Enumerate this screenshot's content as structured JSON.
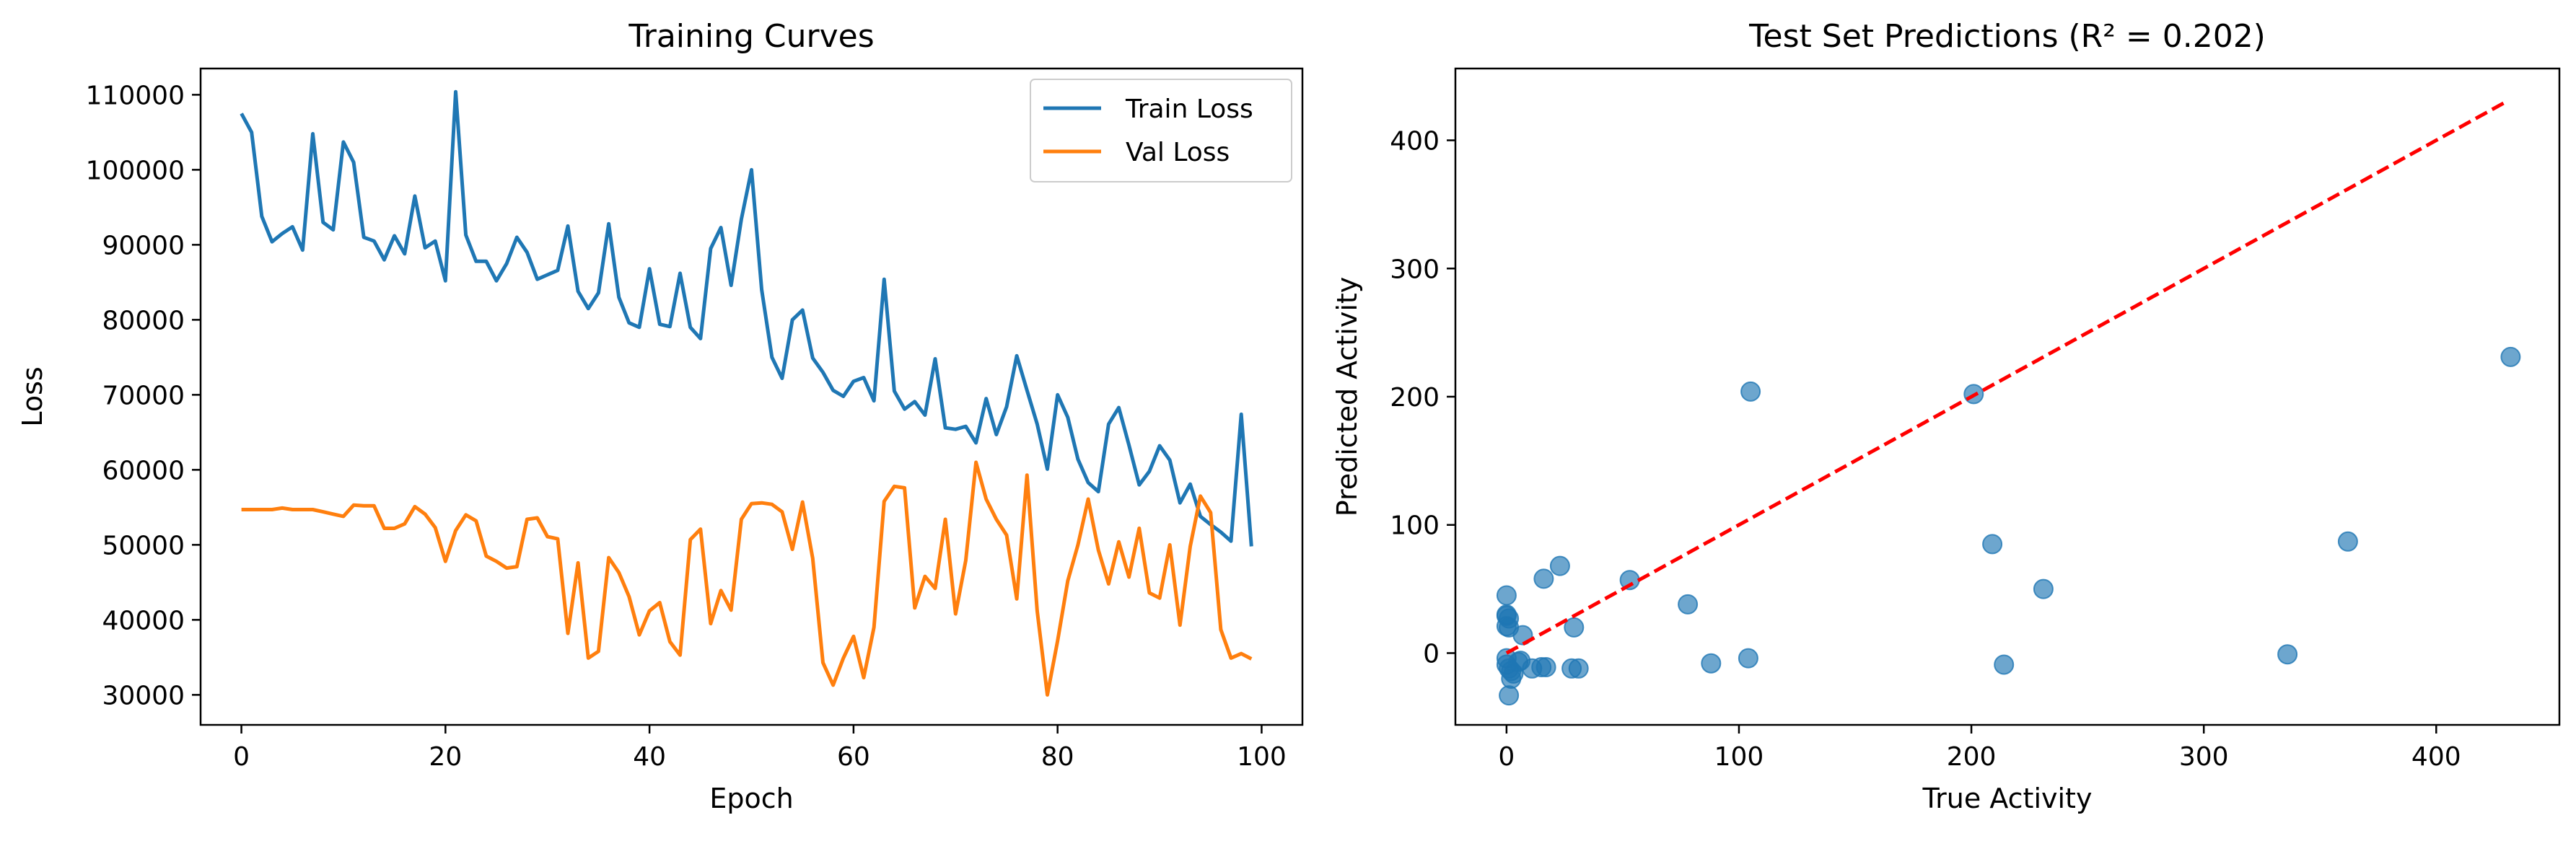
{
  "chart_data": [
    {
      "type": "line",
      "title": "Training Curves",
      "xlabel": "Epoch",
      "ylabel": "Loss",
      "xlim": [
        -4,
        104
      ],
      "ylim": [
        26000,
        113500
      ],
      "xticks": [
        0,
        20,
        40,
        60,
        80,
        100
      ],
      "xtick_labels": [
        "0",
        "20",
        "40",
        "60",
        "80",
        "100"
      ],
      "yticks": [
        30000,
        40000,
        50000,
        60000,
        70000,
        80000,
        90000,
        100000,
        110000
      ],
      "ytick_labels": [
        "30000",
        "40000",
        "50000",
        "60000",
        "70000",
        "80000",
        "90000",
        "100000",
        "110000"
      ],
      "grid": false,
      "legend_position": "top-right",
      "series": [
        {
          "name": "Train Loss",
          "color": "#1f77b4",
          "x": [
            0,
            1,
            2,
            3,
            4,
            5,
            6,
            7,
            8,
            9,
            10,
            11,
            12,
            13,
            14,
            15,
            16,
            17,
            18,
            19,
            20,
            21,
            22,
            23,
            24,
            25,
            26,
            27,
            28,
            29,
            30,
            31,
            32,
            33,
            34,
            35,
            36,
            37,
            38,
            39,
            40,
            41,
            42,
            43,
            44,
            45,
            46,
            47,
            48,
            49,
            50,
            51,
            52,
            53,
            54,
            55,
            56,
            57,
            58,
            59,
            60,
            61,
            62,
            63,
            64,
            65,
            66,
            67,
            68,
            69,
            70,
            71,
            72,
            73,
            74,
            75,
            76,
            77,
            78,
            79,
            80,
            81,
            82,
            83,
            84,
            85,
            86,
            87,
            88,
            89,
            90,
            91,
            92,
            93,
            94,
            95,
            96,
            97,
            98,
            99
          ],
          "values": [
            107500,
            105000,
            93800,
            90400,
            91500,
            92400,
            89300,
            104800,
            93000,
            92000,
            103700,
            101000,
            91000,
            90500,
            88000,
            91200,
            88800,
            96500,
            89600,
            90500,
            85200,
            110400,
            91300,
            87800,
            87800,
            85200,
            87500,
            91000,
            89000,
            85400,
            86000,
            86600,
            92500,
            83800,
            81500,
            83600,
            92800,
            83000,
            79600,
            79000,
            86800,
            79400,
            79100,
            86200,
            79000,
            77500,
            89500,
            92300,
            84600,
            93400,
            100000,
            84000,
            75000,
            72200,
            80000,
            81300,
            74900,
            73000,
            70600,
            69800,
            71800,
            72300,
            69200,
            85400,
            70500,
            68100,
            69100,
            67300,
            74800,
            65600,
            65400,
            65800,
            63600,
            69500,
            64700,
            68400,
            75200,
            70600,
            66100,
            60100,
            70000,
            67000,
            61400,
            58300,
            57100,
            66100,
            68300,
            63300,
            58000,
            59800,
            63200,
            61300,
            55600,
            58100,
            53800,
            52700,
            51700,
            50500,
            67400,
            49800
          ]
        },
        {
          "name": "Val Loss",
          "color": "#ff7f0e",
          "x": [
            0,
            1,
            2,
            3,
            4,
            5,
            6,
            7,
            8,
            9,
            10,
            11,
            12,
            13,
            14,
            15,
            16,
            17,
            18,
            19,
            20,
            21,
            22,
            23,
            24,
            25,
            26,
            27,
            28,
            29,
            30,
            31,
            32,
            33,
            34,
            35,
            36,
            37,
            38,
            39,
            40,
            41,
            42,
            43,
            44,
            45,
            46,
            47,
            48,
            49,
            50,
            51,
            52,
            53,
            54,
            55,
            56,
            57,
            58,
            59,
            60,
            61,
            62,
            63,
            64,
            65,
            66,
            67,
            68,
            69,
            70,
            71,
            72,
            73,
            74,
            75,
            76,
            77,
            78,
            79,
            80,
            81,
            82,
            83,
            84,
            85,
            86,
            87,
            88,
            89,
            90,
            91,
            92,
            93,
            94,
            95,
            96,
            97,
            98,
            99
          ],
          "values": [
            54700,
            54700,
            54700,
            54700,
            54900,
            54700,
            54700,
            54700,
            54400,
            54100,
            53800,
            55300,
            55200,
            55200,
            52200,
            52200,
            52800,
            55100,
            54100,
            52300,
            47800,
            51900,
            54000,
            53200,
            48500,
            47800,
            46900,
            47100,
            53400,
            53600,
            51100,
            50800,
            38200,
            47600,
            34900,
            35800,
            48300,
            46300,
            43100,
            38000,
            41200,
            42300,
            37100,
            35300,
            50700,
            52100,
            39500,
            43900,
            41300,
            53400,
            55500,
            55600,
            55400,
            54400,
            49400,
            55700,
            48200,
            34300,
            31300,
            34900,
            37800,
            32300,
            39000,
            55800,
            57800,
            57600,
            41600,
            45800,
            44200,
            53400,
            40800,
            47900,
            61000,
            56100,
            53400,
            51300,
            42800,
            59300,
            41200,
            30000,
            37200,
            45200,
            50000,
            56100,
            49300,
            44800,
            50400,
            45700,
            52200,
            43600,
            42900,
            50000,
            39300,
            49800,
            56500,
            54300,
            38700,
            34900,
            35500,
            34800
          ]
        }
      ]
    },
    {
      "type": "scatter",
      "title": "Test Set Predictions (R² = 0.202)",
      "xlabel": "True Activity",
      "ylabel": "Predicted Activity",
      "xlim": [
        -22,
        453
      ],
      "ylim": [
        -56,
        456
      ],
      "xticks": [
        0,
        100,
        200,
        300,
        400
      ],
      "xtick_labels": [
        "0",
        "100",
        "200",
        "300",
        "400"
      ],
      "yticks": [
        0,
        100,
        200,
        300,
        400
      ],
      "ytick_labels": [
        "0",
        "100",
        "200",
        "300",
        "400"
      ],
      "grid": false,
      "point_color": "#1f77b4",
      "reference_line": {
        "x": [
          0,
          431
        ],
        "y": [
          0,
          431
        ],
        "color": "#ff0000",
        "style": "dashed"
      },
      "points": {
        "x": [
          0,
          0,
          0,
          1,
          0,
          1,
          0,
          0,
          1,
          2,
          3,
          5,
          6,
          7,
          1,
          2,
          11,
          15,
          16,
          17,
          23,
          29,
          28,
          31,
          53,
          78,
          88,
          104,
          105,
          201,
          209,
          214,
          231,
          336,
          362,
          432
        ],
        "y": [
          45,
          30,
          29,
          27,
          21,
          20,
          -4,
          -9,
          -12,
          -14,
          -16,
          -7,
          -6,
          14,
          -33,
          -20,
          -12,
          -11,
          58,
          -11,
          68,
          20,
          -12,
          -12,
          57,
          38,
          -8,
          -4,
          204,
          202,
          85,
          -9,
          50,
          -1,
          87,
          231
        ]
      }
    }
  ]
}
